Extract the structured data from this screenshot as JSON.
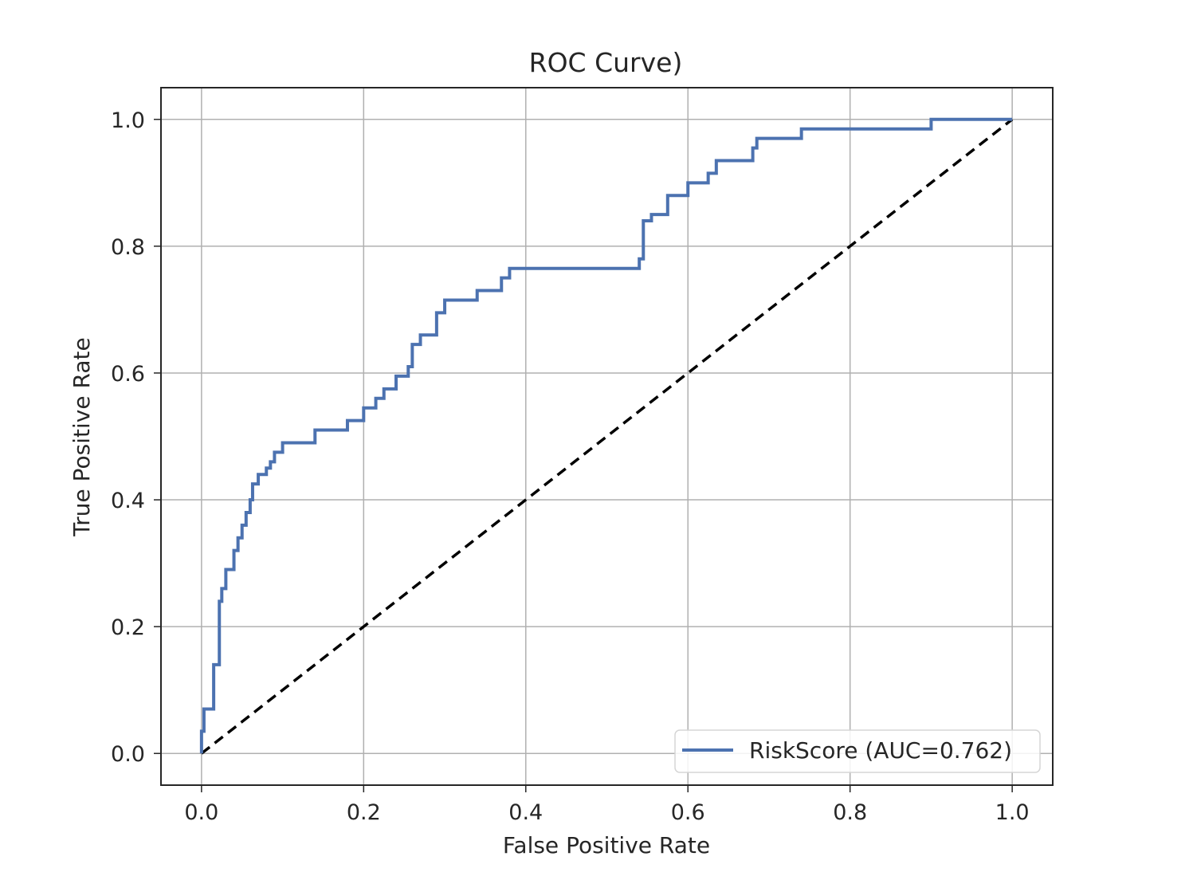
{
  "chart_data": {
    "type": "line",
    "title": "ROC Curve)",
    "xlabel": "False Positive Rate",
    "ylabel": "True Positive Rate",
    "xlim": [
      -0.05,
      1.05
    ],
    "ylim": [
      -0.05,
      1.05
    ],
    "xticks": [
      "0.0",
      "0.2",
      "0.4",
      "0.6",
      "0.8",
      "1.0"
    ],
    "yticks": [
      "0.0",
      "0.2",
      "0.4",
      "0.6",
      "0.8",
      "1.0"
    ],
    "grid": true,
    "legend_position": "lower-right",
    "series": [
      {
        "name": "RiskScore (AUC=0.762)",
        "color": "#4c72b0",
        "style": "solid",
        "x": [
          0,
          0,
          0.003,
          0.003,
          0.015,
          0.015,
          0.022,
          0.022,
          0.025,
          0.025,
          0.03,
          0.03,
          0.04,
          0.04,
          0.045,
          0.045,
          0.05,
          0.05,
          0.055,
          0.055,
          0.06,
          0.06,
          0.063,
          0.063,
          0.07,
          0.07,
          0.08,
          0.08,
          0.085,
          0.085,
          0.09,
          0.09,
          0.1,
          0.1,
          0.14,
          0.14,
          0.18,
          0.18,
          0.2,
          0.2,
          0.215,
          0.215,
          0.225,
          0.225,
          0.24,
          0.24,
          0.255,
          0.255,
          0.26,
          0.26,
          0.27,
          0.27,
          0.29,
          0.29,
          0.3,
          0.3,
          0.34,
          0.34,
          0.37,
          0.37,
          0.38,
          0.38,
          0.54,
          0.54,
          0.545,
          0.545,
          0.555,
          0.555,
          0.575,
          0.575,
          0.6,
          0.6,
          0.625,
          0.625,
          0.635,
          0.635,
          0.68,
          0.68,
          0.685,
          0.685,
          0.74,
          0.74,
          0.9,
          0.9,
          1.0
        ],
        "y": [
          0,
          0.035,
          0.035,
          0.07,
          0.07,
          0.14,
          0.14,
          0.24,
          0.24,
          0.26,
          0.26,
          0.29,
          0.29,
          0.32,
          0.32,
          0.34,
          0.34,
          0.36,
          0.36,
          0.38,
          0.38,
          0.4,
          0.4,
          0.425,
          0.425,
          0.44,
          0.44,
          0.45,
          0.45,
          0.46,
          0.46,
          0.475,
          0.475,
          0.49,
          0.49,
          0.51,
          0.51,
          0.525,
          0.525,
          0.545,
          0.545,
          0.56,
          0.56,
          0.575,
          0.575,
          0.595,
          0.595,
          0.61,
          0.61,
          0.645,
          0.645,
          0.66,
          0.66,
          0.695,
          0.695,
          0.715,
          0.715,
          0.73,
          0.73,
          0.75,
          0.75,
          0.765,
          0.765,
          0.78,
          0.78,
          0.84,
          0.84,
          0.85,
          0.85,
          0.88,
          0.88,
          0.9,
          0.9,
          0.915,
          0.915,
          0.935,
          0.935,
          0.955,
          0.955,
          0.97,
          0.97,
          0.985,
          0.985,
          1.0,
          1.0
        ]
      },
      {
        "name": "",
        "color": "#000000",
        "style": "dashed",
        "x": [
          0,
          1
        ],
        "y": [
          0,
          1
        ]
      }
    ]
  }
}
